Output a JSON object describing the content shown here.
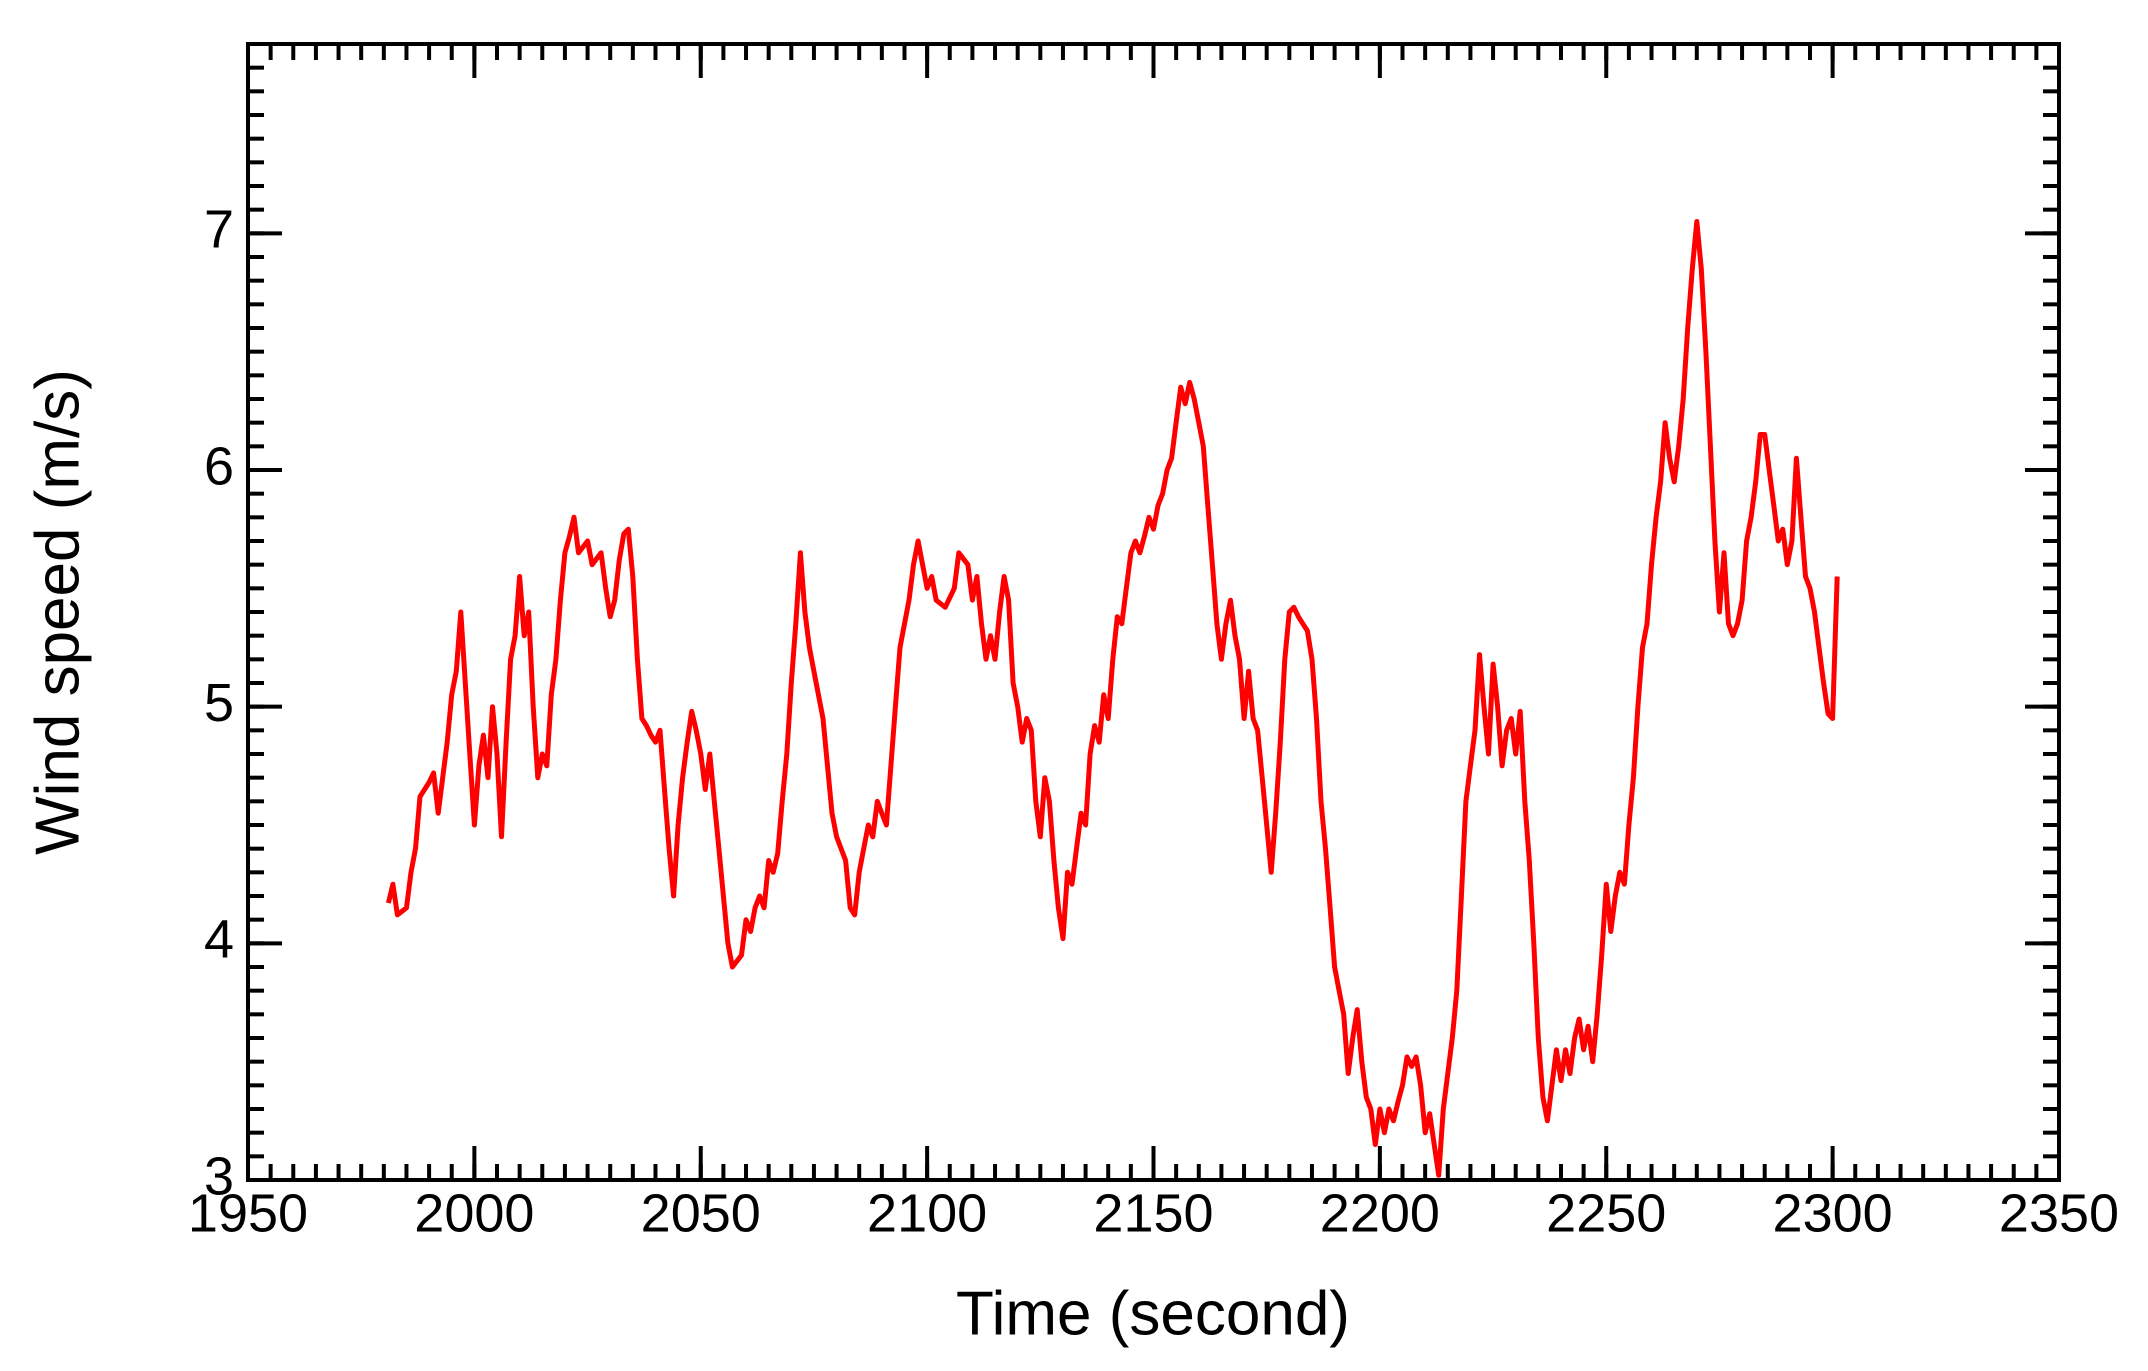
{
  "chart_data": {
    "type": "line",
    "x_label": "Time (second)",
    "y_label": "Wind speed (m/s)",
    "xlim": [
      1950,
      2350
    ],
    "xticks": [
      1950,
      2000,
      2050,
      2100,
      2150,
      2200,
      2250,
      2300,
      2350
    ],
    "ylim": [
      3,
      7.8
    ],
    "yticks": [
      3,
      4,
      5,
      6,
      7
    ],
    "x_minor_step": 5,
    "y_minor_step": 0.1,
    "series": [
      {
        "color": "#ff0000",
        "x": [
          1981,
          1982,
          1983,
          1985,
          1986,
          1987,
          1988,
          1990,
          1991,
          1992,
          1993,
          1994,
          1995,
          1996,
          1997,
          1998,
          1999,
          2000,
          2001,
          2002,
          2003,
          2004,
          2005,
          2006,
          2007,
          2008,
          2009,
          2010,
          2011,
          2012,
          2013,
          2014,
          2015,
          2016,
          2017,
          2018,
          2019,
          2020,
          2021,
          2022,
          2023,
          2025,
          2026,
          2028,
          2029,
          2030,
          2031,
          2032,
          2033,
          2034,
          2035,
          2036,
          2037,
          2038,
          2039,
          2040,
          2041,
          2042,
          2043,
          2044,
          2045,
          2046,
          2047,
          2048,
          2049,
          2050,
          2051,
          2052,
          2053,
          2054,
          2055,
          2056,
          2057,
          2059,
          2060,
          2061,
          2062,
          2063,
          2064,
          2065,
          2066,
          2067,
          2068,
          2069,
          2070,
          2071,
          2072,
          2073,
          2074,
          2075,
          2077,
          2078,
          2079,
          2080,
          2082,
          2083,
          2084,
          2085,
          2086,
          2087,
          2088,
          2089,
          2090,
          2091,
          2092,
          2093,
          2094,
          2095,
          2096,
          2097,
          2098,
          2099,
          2100,
          2101,
          2102,
          2104,
          2106,
          2107,
          2109,
          2110,
          2111,
          2112,
          2113,
          2114,
          2115,
          2116,
          2117,
          2118,
          2119,
          2120,
          2121,
          2122,
          2123,
          2124,
          2125,
          2126,
          2127,
          2128,
          2129,
          2130,
          2131,
          2132,
          2133,
          2134,
          2135,
          2136,
          2137,
          2138,
          2139,
          2140,
          2141,
          2142,
          2143,
          2144,
          2145,
          2146,
          2147,
          2148,
          2149,
          2150,
          2151,
          2152,
          2153,
          2154,
          2155,
          2156,
          2157,
          2158,
          2159,
          2160,
          2161,
          2162,
          2163,
          2164,
          2165,
          2166,
          2167,
          2168,
          2169,
          2170,
          2171,
          2172,
          2173,
          2174,
          2175,
          2176,
          2177,
          2178,
          2179,
          2180,
          2181,
          2182,
          2183,
          2184,
          2185,
          2186,
          2187,
          2188,
          2189,
          2190,
          2191,
          2192,
          2193,
          2194,
          2195,
          2196,
          2197,
          2198,
          2199,
          2200,
          2201,
          2202,
          2203,
          2204,
          2205,
          2206,
          2207,
          2208,
          2209,
          2210,
          2211,
          2212,
          2213,
          2214,
          2215,
          2216,
          2217,
          2218,
          2219,
          2220,
          2221,
          2222,
          2223,
          2224,
          2225,
          2226,
          2227,
          2228,
          2229,
          2230,
          2231,
          2232,
          2233,
          2234,
          2235,
          2236,
          2237,
          2238,
          2239,
          2240,
          2241,
          2242,
          2243,
          2244,
          2245,
          2246,
          2247,
          2248,
          2249,
          2250,
          2251,
          2252,
          2253,
          2254,
          2255,
          2256,
          2257,
          2258,
          2259,
          2260,
          2261,
          2262,
          2263,
          2264,
          2265,
          2266,
          2267,
          2268,
          2269,
          2270,
          2271,
          2272,
          2273,
          2274,
          2275,
          2276,
          2277,
          2278,
          2279,
          2280,
          2281,
          2282,
          2283,
          2284,
          2285,
          2286,
          2287,
          2288,
          2289,
          2290,
          2291,
          2292,
          2293,
          2294,
          2295,
          2296,
          2297,
          2298,
          2299,
          2300,
          2301
        ],
        "values": [
          4.17,
          4.25,
          4.12,
          4.15,
          4.3,
          4.4,
          4.62,
          4.68,
          4.72,
          4.55,
          4.7,
          4.85,
          5.05,
          5.15,
          5.4,
          5.1,
          4.8,
          4.5,
          4.75,
          4.88,
          4.7,
          5.0,
          4.8,
          4.45,
          4.85,
          5.2,
          5.3,
          5.55,
          5.3,
          5.4,
          5.0,
          4.7,
          4.8,
          4.75,
          5.05,
          5.2,
          5.45,
          5.65,
          5.72,
          5.8,
          5.65,
          5.7,
          5.6,
          5.65,
          5.5,
          5.38,
          5.45,
          5.62,
          5.73,
          5.75,
          5.55,
          5.2,
          4.95,
          4.92,
          4.88,
          4.85,
          4.9,
          4.65,
          4.4,
          4.2,
          4.5,
          4.7,
          4.85,
          4.98,
          4.9,
          4.8,
          4.65,
          4.8,
          4.6,
          4.4,
          4.2,
          4.0,
          3.9,
          3.95,
          4.1,
          4.05,
          4.15,
          4.2,
          4.15,
          4.35,
          4.3,
          4.38,
          4.6,
          4.8,
          5.1,
          5.35,
          5.65,
          5.4,
          5.25,
          5.15,
          4.95,
          4.75,
          4.55,
          4.45,
          4.35,
          4.15,
          4.12,
          4.3,
          4.4,
          4.5,
          4.45,
          4.6,
          4.55,
          4.5,
          4.75,
          5.0,
          5.25,
          5.35,
          5.45,
          5.6,
          5.7,
          5.6,
          5.5,
          5.55,
          5.45,
          5.42,
          5.5,
          5.65,
          5.6,
          5.45,
          5.55,
          5.35,
          5.2,
          5.3,
          5.2,
          5.4,
          5.55,
          5.45,
          5.1,
          5.0,
          4.85,
          4.95,
          4.9,
          4.6,
          4.45,
          4.7,
          4.6,
          4.35,
          4.15,
          4.02,
          4.3,
          4.25,
          4.4,
          4.55,
          4.5,
          4.8,
          4.92,
          4.85,
          5.05,
          4.95,
          5.2,
          5.38,
          5.35,
          5.5,
          5.65,
          5.7,
          5.65,
          5.72,
          5.8,
          5.75,
          5.85,
          5.9,
          6.0,
          6.05,
          6.2,
          6.35,
          6.28,
          6.37,
          6.3,
          6.2,
          6.1,
          5.85,
          5.6,
          5.35,
          5.2,
          5.35,
          5.45,
          5.3,
          5.2,
          4.95,
          5.15,
          4.95,
          4.9,
          4.7,
          4.5,
          4.3,
          4.55,
          4.85,
          5.2,
          5.4,
          5.42,
          5.38,
          5.35,
          5.32,
          5.2,
          4.95,
          4.6,
          4.4,
          4.15,
          3.9,
          3.8,
          3.7,
          3.45,
          3.6,
          3.72,
          3.5,
          3.35,
          3.3,
          3.15,
          3.3,
          3.2,
          3.3,
          3.25,
          3.33,
          3.4,
          3.52,
          3.48,
          3.52,
          3.4,
          3.2,
          3.28,
          3.15,
          3.02,
          3.3,
          3.45,
          3.6,
          3.8,
          4.2,
          4.6,
          4.75,
          4.9,
          5.22,
          5.0,
          4.8,
          5.18,
          5.0,
          4.75,
          4.9,
          4.95,
          4.8,
          4.98,
          4.6,
          4.35,
          4.0,
          3.6,
          3.35,
          3.25,
          3.4,
          3.55,
          3.42,
          3.55,
          3.45,
          3.6,
          3.68,
          3.55,
          3.65,
          3.5,
          3.7,
          3.95,
          4.25,
          4.05,
          4.2,
          4.3,
          4.25,
          4.5,
          4.7,
          5.0,
          5.25,
          5.35,
          5.6,
          5.8,
          5.95,
          6.2,
          6.05,
          5.95,
          6.1,
          6.3,
          6.6,
          6.85,
          7.05,
          6.85,
          6.5,
          6.1,
          5.7,
          5.4,
          5.65,
          5.35,
          5.3,
          5.35,
          5.45,
          5.7,
          5.8,
          5.95,
          6.15,
          6.15,
          6.0,
          5.85,
          5.7,
          5.75,
          5.6,
          5.7,
          6.05,
          5.8,
          5.55,
          5.5,
          5.4,
          5.25,
          5.1,
          4.97,
          4.95,
          5.55
        ]
      }
    ]
  }
}
